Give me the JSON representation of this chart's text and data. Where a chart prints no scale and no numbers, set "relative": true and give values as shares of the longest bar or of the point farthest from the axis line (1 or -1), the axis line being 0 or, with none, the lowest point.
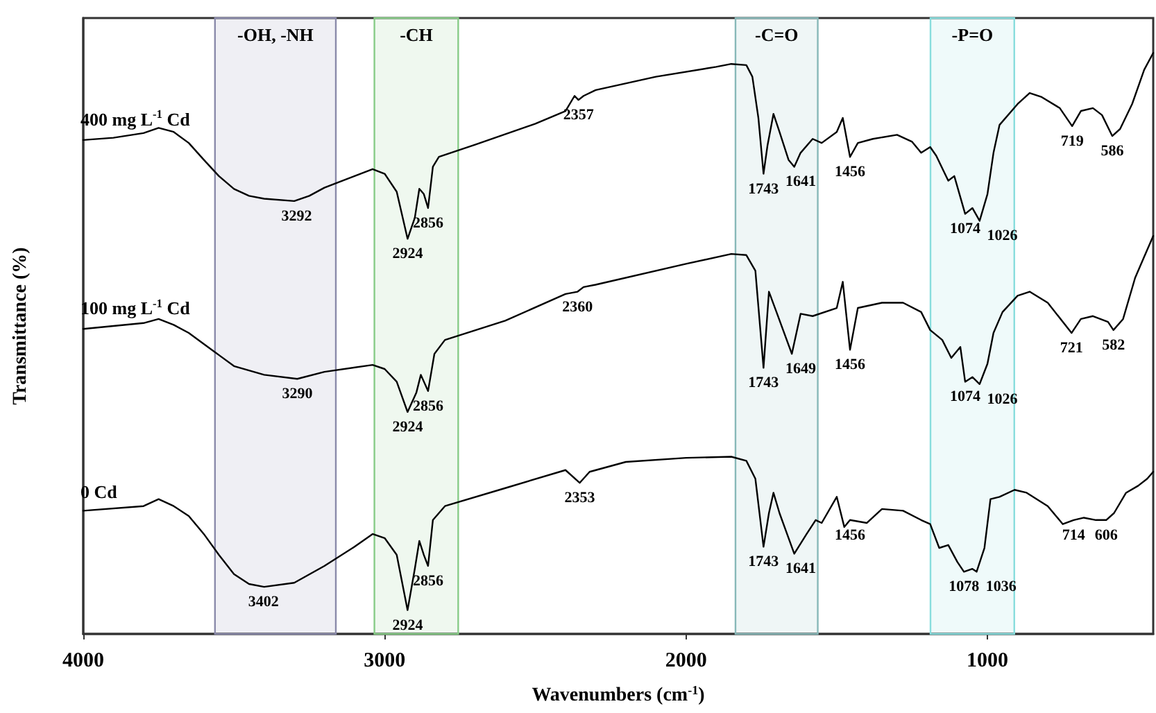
{
  "chart_data": {
    "type": "line",
    "relative": true,
    "xlabel": "Wavenumbers (cm$^{-1}$)",
    "ylabel": "Transmittance (%)",
    "xlim": [
      4000,
      450
    ],
    "xticks": [
      4000,
      3000,
      2000,
      1000
    ],
    "grid": false,
    "legend": false,
    "marker": "none",
    "line_style": "solid",
    "series": [
      {
        "name": "400 mg L$^{-1}$ Cd",
        "color": "#000000",
        "x": [
          4000,
          3900,
          3800,
          3750,
          3700,
          3650,
          3600,
          3550,
          3500,
          3450,
          3400,
          3300,
          3250,
          3200,
          3100,
          3040,
          3000,
          2960,
          2924,
          2900,
          2885,
          2870,
          2856,
          2840,
          2820,
          2700,
          2500,
          2400,
          2370,
          2357,
          2340,
          2300,
          2100,
          1900,
          1850,
          1800,
          1780,
          1760,
          1743,
          1730,
          1710,
          1690,
          1660,
          1641,
          1620,
          1580,
          1550,
          1500,
          1480,
          1456,
          1430,
          1380,
          1300,
          1250,
          1220,
          1190,
          1170,
          1130,
          1110,
          1074,
          1050,
          1026,
          1000,
          980,
          960,
          900,
          860,
          820,
          760,
          719,
          690,
          650,
          620,
          586,
          560,
          520,
          480,
          450
        ],
        "values": [
          0.85,
          0.854,
          0.862,
          0.871,
          0.864,
          0.845,
          0.816,
          0.788,
          0.766,
          0.754,
          0.749,
          0.745,
          0.754,
          0.768,
          0.788,
          0.8,
          0.792,
          0.761,
          0.68,
          0.716,
          0.766,
          0.757,
          0.733,
          0.804,
          0.821,
          0.842,
          0.878,
          0.9,
          0.926,
          0.919,
          0.926,
          0.936,
          0.959,
          0.976,
          0.981,
          0.979,
          0.959,
          0.888,
          0.792,
          0.84,
          0.895,
          0.864,
          0.816,
          0.804,
          0.828,
          0.852,
          0.845,
          0.864,
          0.888,
          0.821,
          0.845,
          0.852,
          0.859,
          0.847,
          0.828,
          0.838,
          0.823,
          0.78,
          0.788,
          0.723,
          0.733,
          0.711,
          0.757,
          0.828,
          0.876,
          0.912,
          0.931,
          0.924,
          0.905,
          0.874,
          0.9,
          0.905,
          0.893,
          0.857,
          0.869,
          0.912,
          0.971,
          1
        ]
      },
      {
        "name": "100 mg L$^{-1}$ Cd",
        "color": "#000000",
        "x": [
          4000,
          3800,
          3750,
          3700,
          3650,
          3600,
          3550,
          3500,
          3400,
          3290,
          3200,
          3040,
          3000,
          2960,
          2924,
          2895,
          2880,
          2856,
          2835,
          2800,
          2600,
          2400,
          2360,
          2340,
          2300,
          2000,
          1850,
          1800,
          1770,
          1743,
          1725,
          1700,
          1649,
          1620,
          1580,
          1500,
          1480,
          1456,
          1430,
          1350,
          1280,
          1220,
          1190,
          1150,
          1120,
          1090,
          1074,
          1050,
          1026,
          1000,
          980,
          950,
          900,
          860,
          800,
          721,
          690,
          650,
          600,
          582,
          550,
          510,
          480,
          450
        ],
        "values": [
          0.525,
          0.535,
          0.542,
          0.532,
          0.518,
          0.499,
          0.48,
          0.461,
          0.446,
          0.439,
          0.451,
          0.463,
          0.456,
          0.434,
          0.382,
          0.415,
          0.446,
          0.418,
          0.482,
          0.506,
          0.539,
          0.585,
          0.589,
          0.597,
          0.601,
          0.637,
          0.654,
          0.652,
          0.625,
          0.458,
          0.589,
          0.554,
          0.482,
          0.551,
          0.547,
          0.561,
          0.606,
          0.489,
          0.561,
          0.57,
          0.57,
          0.554,
          0.523,
          0.506,
          0.475,
          0.494,
          0.434,
          0.442,
          0.43,
          0.465,
          0.518,
          0.554,
          0.582,
          0.589,
          0.57,
          0.518,
          0.542,
          0.547,
          0.537,
          0.523,
          0.542,
          0.613,
          0.649,
          0.685
        ]
      },
      {
        "name": "0 Cd",
        "color": "#000000",
        "x": [
          4000,
          3800,
          3750,
          3700,
          3650,
          3600,
          3550,
          3500,
          3450,
          3400,
          3300,
          3200,
          3100,
          3040,
          3000,
          2960,
          2924,
          2900,
          2885,
          2870,
          2856,
          2840,
          2800,
          2600,
          2400,
          2353,
          2320,
          2200,
          2000,
          1850,
          1800,
          1770,
          1743,
          1725,
          1710,
          1690,
          1641,
          1600,
          1570,
          1550,
          1500,
          1475,
          1456,
          1400,
          1350,
          1280,
          1220,
          1190,
          1160,
          1130,
          1100,
          1078,
          1050,
          1036,
          1010,
          990,
          960,
          910,
          870,
          800,
          750,
          714,
          680,
          640,
          606,
          580,
          540,
          500,
          470,
          450
        ],
        "values": [
          0.212,
          0.22,
          0.232,
          0.22,
          0.203,
          0.172,
          0.136,
          0.103,
          0.086,
          0.081,
          0.088,
          0.117,
          0.15,
          0.172,
          0.165,
          0.136,
          0.041,
          0.112,
          0.16,
          0.136,
          0.117,
          0.196,
          0.22,
          0.251,
          0.282,
          0.26,
          0.279,
          0.296,
          0.303,
          0.305,
          0.298,
          0.267,
          0.15,
          0.208,
          0.243,
          0.208,
          0.138,
          0.172,
          0.196,
          0.191,
          0.236,
          0.184,
          0.196,
          0.191,
          0.215,
          0.212,
          0.196,
          0.189,
          0.148,
          0.153,
          0.124,
          0.107,
          0.112,
          0.107,
          0.148,
          0.232,
          0.236,
          0.248,
          0.243,
          0.22,
          0.189,
          0.196,
          0.2,
          0.196,
          0.196,
          0.208,
          0.243,
          0.255,
          0.267,
          0.279
        ]
      }
    ],
    "bands": [
      {
        "axis": "x",
        "from": 3563,
        "to": 3162,
        "label": "-OH, -NH",
        "color": "#8a8aaa"
      },
      {
        "axis": "x",
        "from": 3034,
        "to": 2756,
        "label": "-CH",
        "color": "#88cc88"
      },
      {
        "axis": "x",
        "from": 1836,
        "to": 1563,
        "label": "-C=O",
        "color": "#88b8b8"
      },
      {
        "axis": "x",
        "from": 1189,
        "to": 911,
        "label": "-P=O",
        "color": "#88dddd"
      }
    ],
    "annotations": [
      {
        "text": "3292",
        "x": 3292,
        "y": 0.745
      },
      {
        "text": "2924",
        "x": 2924,
        "y": 0.68
      },
      {
        "text": "2856",
        "x": 2856,
        "y": 0.733
      },
      {
        "text": "2357",
        "x": 2357,
        "y": 0.919
      },
      {
        "text": "1743",
        "x": 1743,
        "y": 0.792
      },
      {
        "text": "1641",
        "x": 1641,
        "y": 0.804
      },
      {
        "text": "1456",
        "x": 1456,
        "y": 0.821
      },
      {
        "text": "1074",
        "x": 1074,
        "y": 0.723
      },
      {
        "text": "1026",
        "x": 1026,
        "y": 0.711
      },
      {
        "text": "719",
        "x": 719,
        "y": 0.874
      },
      {
        "text": "586",
        "x": 586,
        "y": 0.857
      },
      {
        "text": "3290",
        "x": 3290,
        "y": 0.439
      },
      {
        "text": "2924",
        "x": 2924,
        "y": 0.382
      },
      {
        "text": "2856",
        "x": 2856,
        "y": 0.418
      },
      {
        "text": "2360",
        "x": 2360,
        "y": 0.589
      },
      {
        "text": "1743",
        "x": 1743,
        "y": 0.458
      },
      {
        "text": "1649",
        "x": 1649,
        "y": 0.482
      },
      {
        "text": "1456",
        "x": 1456,
        "y": 0.489
      },
      {
        "text": "1074",
        "x": 1074,
        "y": 0.434
      },
      {
        "text": "1026",
        "x": 1026,
        "y": 0.43
      },
      {
        "text": "721",
        "x": 721,
        "y": 0.518
      },
      {
        "text": "582",
        "x": 582,
        "y": 0.523
      },
      {
        "text": "3402",
        "x": 3402,
        "y": 0.081
      },
      {
        "text": "2924",
        "x": 2924,
        "y": 0.041
      },
      {
        "text": "2856",
        "x": 2856,
        "y": 0.117
      },
      {
        "text": "2353",
        "x": 2353,
        "y": 0.26
      },
      {
        "text": "1743",
        "x": 1743,
        "y": 0.15
      },
      {
        "text": "1641",
        "x": 1641,
        "y": 0.138
      },
      {
        "text": "1456",
        "x": 1456,
        "y": 0.196
      },
      {
        "text": "1078",
        "x": 1078,
        "y": 0.107
      },
      {
        "text": "1036",
        "x": 1036,
        "y": 0.107
      },
      {
        "text": "714",
        "x": 714,
        "y": 0.196
      },
      {
        "text": "606",
        "x": 606,
        "y": 0.196
      }
    ]
  }
}
